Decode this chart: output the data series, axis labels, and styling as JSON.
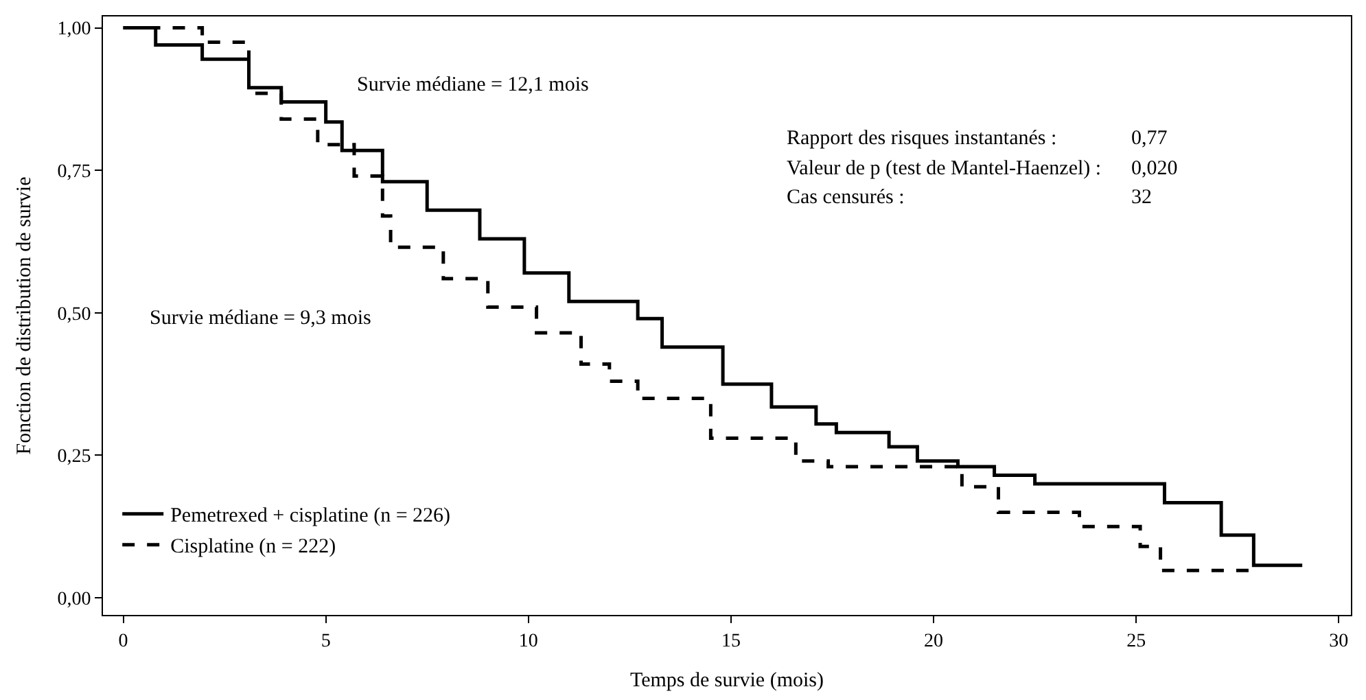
{
  "chart_data": {
    "type": "step",
    "xlabel": "Temps de survie (mois)",
    "ylabel": "Fonction de distribution de survie",
    "xlim": [
      -0.5,
      30.3
    ],
    "ylim": [
      -0.03,
      1.02
    ],
    "xticks": [
      0,
      5,
      10,
      15,
      20,
      25,
      30
    ],
    "yticks": [
      {
        "value": 0,
        "label": "0,00"
      },
      {
        "value": 0.25,
        "label": "0,25"
      },
      {
        "value": 0.5,
        "label": "0,50"
      },
      {
        "value": 0.75,
        "label": "0,75"
      },
      {
        "value": 1,
        "label": "1,00"
      }
    ],
    "legend": "bottom left",
    "marker": "none",
    "series": [
      {
        "name": "Pemetrexed + cisplatine (n = 226)",
        "color": "#000000",
        "line_style": "solid",
        "x": [
          0,
          0.8,
          1.95,
          3.1,
          3.9,
          5.0,
          5.4,
          6.4,
          7.5,
          8.8,
          9.9,
          11.0,
          12.7,
          13.3,
          14.8,
          16.0,
          17.1,
          17.6,
          18.9,
          19.6,
          20.6,
          21.5,
          22.5,
          25.7,
          27.1,
          27.9,
          29.1
        ],
        "values": [
          1.0,
          0.97,
          0.945,
          0.895,
          0.87,
          0.835,
          0.785,
          0.73,
          0.68,
          0.63,
          0.57,
          0.52,
          0.49,
          0.44,
          0.375,
          0.335,
          0.305,
          0.29,
          0.265,
          0.24,
          0.23,
          0.215,
          0.2,
          0.167,
          0.11,
          0.057,
          0.057
        ]
      },
      {
        "name": "Cisplatine (n = 222)",
        "color": "#000000",
        "line_style": "dashed",
        "x": [
          0,
          1.95,
          3.1,
          3.9,
          4.8,
          5.7,
          6.4,
          6.6,
          7.9,
          9.0,
          10.2,
          11.3,
          12.0,
          12.7,
          14.5,
          16.6,
          17.4,
          19.8,
          20.7,
          21.6,
          23.6,
          25.1,
          25.6,
          27.8
        ],
        "values": [
          1.0,
          0.975,
          0.885,
          0.84,
          0.795,
          0.74,
          0.67,
          0.615,
          0.56,
          0.51,
          0.465,
          0.41,
          0.38,
          0.35,
          0.28,
          0.24,
          0.23,
          0.23,
          0.195,
          0.15,
          0.125,
          0.09,
          0.048,
          0.048
        ]
      }
    ],
    "annotations": [
      "Survie médiane = 12,1 mois",
      "Survie médiane = 9,3 mois",
      "Rapport des risques instantanés :",
      "0,77",
      "Valeur de p (test de Mantel-Haenzel) :",
      "0,020",
      "Cas censurés :",
      "32"
    ]
  }
}
